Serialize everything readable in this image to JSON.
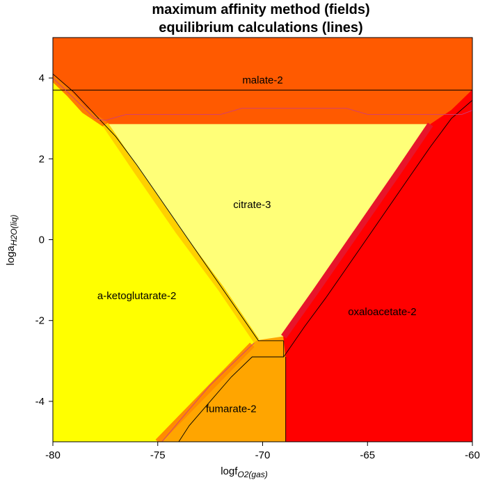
{
  "title_line1": "maximum affinity method (fields)",
  "title_line2": "equilibrium calculations (lines)",
  "axes": {
    "x": {
      "label_main": "logf",
      "label_sub": "O2(gas)",
      "range": [
        -80,
        -60
      ],
      "ticks": [
        -80,
        -75,
        -70,
        -65,
        -60
      ],
      "tick_labels": [
        "-80",
        "-75",
        "-70",
        "-65",
        "-60"
      ]
    },
    "y": {
      "label_main": "loga",
      "label_sub": "H2O(liq)",
      "range": [
        -5,
        5
      ],
      "ticks": [
        -4,
        -2,
        0,
        2,
        4
      ],
      "tick_labels": [
        "-4",
        "-2",
        "0",
        "2",
        "4"
      ]
    }
  },
  "chart_data": {
    "type": "area",
    "x_label": "logf O2(gas)",
    "y_label": "loga H2O(liq)",
    "xlim": [
      -80,
      -60
    ],
    "ylim": [
      -5,
      5
    ],
    "fields": [
      {
        "name": "malate-2",
        "label_xy": [
          -70,
          3.93
        ],
        "color": "#FF5A00",
        "polygon": [
          [
            -80,
            5
          ],
          [
            -60,
            5
          ],
          [
            -60,
            3.7
          ],
          [
            -61,
            3.2
          ],
          [
            -62,
            2.85
          ],
          [
            -77.5,
            2.85
          ],
          [
            -78.5,
            3.2
          ],
          [
            -80,
            4
          ]
        ]
      },
      {
        "name": "citrate-3",
        "label_xy": [
          -70.5,
          0.85
        ],
        "color": "#FFFF78",
        "polygon": [
          [
            -77.5,
            2.85
          ],
          [
            -62,
            2.85
          ],
          [
            -69.0,
            -2.4
          ],
          [
            -70.3,
            -2.5
          ]
        ]
      },
      {
        "name": "a-ketoglutarate-2",
        "label_xy": [
          -76,
          -1.4
        ],
        "color": "#FFFF00",
        "polygon": [
          [
            -80,
            4
          ],
          [
            -78.5,
            3.2
          ],
          [
            -77.5,
            2.85
          ],
          [
            -70.3,
            -2.5
          ],
          [
            -70.5,
            -2.6
          ],
          [
            -75.0,
            -5
          ],
          [
            -80,
            -5
          ]
        ]
      },
      {
        "name": "fumarate-2",
        "label_xy": [
          -71.5,
          -4.2
        ],
        "color": "#FFA500",
        "polygon": [
          [
            -70.5,
            -2.6
          ],
          [
            -70.3,
            -2.5
          ],
          [
            -69.0,
            -2.4
          ],
          [
            -68.9,
            -2.9
          ],
          [
            -68.9,
            -5
          ],
          [
            -75.0,
            -5
          ]
        ]
      },
      {
        "name": "oxaloacetate-2",
        "label_xy": [
          -64.3,
          -1.8
        ],
        "color": "#FF0000",
        "polygon": [
          [
            -60,
            3.7
          ],
          [
            -60,
            -5
          ],
          [
            -68.9,
            -5
          ],
          [
            -68.9,
            -2.9
          ],
          [
            -69.0,
            -2.4
          ],
          [
            -62,
            2.85
          ],
          [
            -61,
            3.2
          ]
        ]
      }
    ],
    "boundary_bands": [
      {
        "color": "#FF7A00",
        "points": [
          [
            -80,
            4.0
          ],
          [
            -79.2,
            3.6
          ],
          [
            -78.5,
            3.2
          ],
          [
            -77.5,
            2.85
          ]
        ]
      },
      {
        "color": "#FFD000",
        "points": [
          [
            -77.5,
            2.85
          ],
          [
            -76.0,
            1.7
          ],
          [
            -74.0,
            0.2
          ],
          [
            -72.0,
            -1.2
          ],
          [
            -70.3,
            -2.5
          ]
        ]
      },
      {
        "color": "#E8142A",
        "points": [
          [
            -62.0,
            2.85
          ],
          [
            -63.5,
            1.7
          ],
          [
            -65.5,
            0.2
          ],
          [
            -67.5,
            -1.3
          ],
          [
            -69.0,
            -2.4
          ]
        ]
      },
      {
        "color": "#FF8C00",
        "points": [
          [
            -70.5,
            -2.6
          ],
          [
            -72.0,
            -3.4
          ],
          [
            -73.5,
            -4.2
          ],
          [
            -75.0,
            -5.0
          ]
        ]
      }
    ],
    "equilibrium_lines": [
      {
        "color": "#000000",
        "points": [
          [
            -80,
            3.7
          ],
          [
            -60,
            3.7
          ]
        ]
      },
      {
        "color": "#000000",
        "points": [
          [
            -80,
            4.1
          ],
          [
            -79.0,
            3.65
          ],
          [
            -78.0,
            3.1
          ],
          [
            -77.0,
            2.55
          ],
          [
            -76.0,
            1.85
          ],
          [
            -75.0,
            1.1
          ],
          [
            -74.0,
            0.35
          ],
          [
            -73.0,
            -0.4
          ],
          [
            -72.0,
            -1.15
          ],
          [
            -71.0,
            -1.9
          ],
          [
            -70.2,
            -2.5
          ],
          [
            -69.0,
            -2.5
          ]
        ]
      },
      {
        "color": "#000000",
        "points": [
          [
            -60,
            3.45
          ],
          [
            -61.0,
            3.0
          ],
          [
            -62.0,
            2.3
          ],
          [
            -63.0,
            1.55
          ],
          [
            -64.0,
            0.8
          ],
          [
            -65.0,
            0.05
          ],
          [
            -66.0,
            -0.7
          ],
          [
            -67.0,
            -1.45
          ],
          [
            -68.0,
            -2.15
          ],
          [
            -69.0,
            -2.9
          ],
          [
            -70.5,
            -2.9
          ],
          [
            -71.5,
            -3.4
          ],
          [
            -72.5,
            -4.0
          ],
          [
            -73.5,
            -4.6
          ],
          [
            -74.0,
            -5.0
          ]
        ]
      },
      {
        "color": "#000000",
        "points": [
          [
            -68.9,
            -2.9
          ],
          [
            -68.9,
            -5.0
          ]
        ]
      },
      {
        "color": "#000000",
        "points": [
          [
            -69.0,
            -2.5
          ],
          [
            -69.0,
            -2.9
          ]
        ]
      },
      {
        "color": "#D03C78",
        "points": [
          [
            -80,
            4.0
          ],
          [
            -79.0,
            3.5
          ],
          [
            -78.0,
            3.0
          ],
          [
            -77.5,
            2.95
          ],
          [
            -76.5,
            3.1
          ],
          [
            -72.0,
            3.1
          ],
          [
            -71.0,
            3.25
          ],
          [
            -66.0,
            3.25
          ],
          [
            -65.0,
            3.1
          ],
          [
            -60.5,
            3.1
          ],
          [
            -60,
            3.2
          ]
        ]
      },
      {
        "color": "#D03C78",
        "points": [
          [
            -70.4,
            -2.55
          ],
          [
            -71.5,
            -3.1
          ],
          [
            -72.5,
            -3.6
          ],
          [
            -73.5,
            -4.2
          ],
          [
            -74.8,
            -5.0
          ]
        ]
      }
    ]
  }
}
